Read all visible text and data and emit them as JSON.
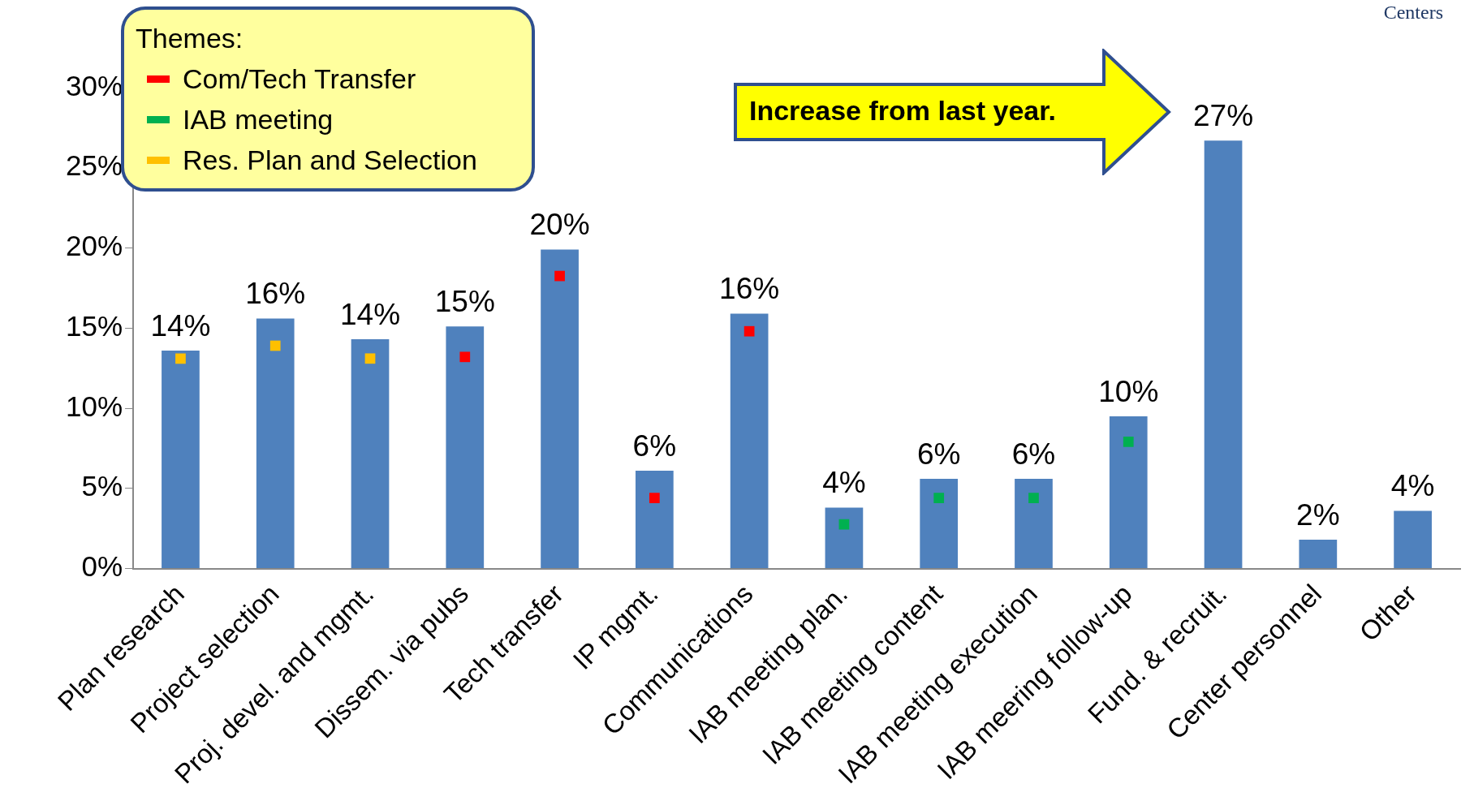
{
  "chart_data": {
    "type": "bar",
    "categories": [
      "Plan research",
      "Project selection",
      "Proj. devel. and mgmt.",
      "Dissem. via pubs",
      "Tech transfer",
      "IP mgmt.",
      "Communications",
      "IAB meeting plan.",
      "IAB meeting content",
      "IAB meeting execution",
      "IAB meering follow-up",
      "Fund. & recruit.",
      "Center personnel",
      "Other"
    ],
    "series": [
      {
        "color": "#4f81bd",
        "values": [
          13.6,
          15.6,
          14.3,
          15.1,
          19.9,
          6.1,
          15.9,
          3.8,
          5.6,
          5.6,
          9.5,
          26.7,
          1.8,
          3.6
        ],
        "value_labels": [
          "14%",
          "16%",
          "14%",
          "15%",
          "20%",
          "6%",
          "16%",
          "4%",
          "6%",
          "6%",
          "10%",
          "27%",
          "2%",
          "4%"
        ]
      },
      {
        "type": "scatter",
        "name": "Com/Tech Transfer",
        "color": "#ff0000",
        "x": [
          "Dissem. via pubs",
          "Tech transfer",
          "IP mgmt.",
          "Communications"
        ],
        "values": [
          13.2,
          18.25,
          4.4,
          14.8
        ]
      },
      {
        "type": "scatter",
        "name": "IAB meeting",
        "color": "#00b050",
        "x": [
          "IAB meeting plan.",
          "IAB meeting content",
          "IAB meeting execution",
          "IAB meering follow-up"
        ],
        "values": [
          2.75,
          4.4,
          4.4,
          7.9
        ]
      },
      {
        "type": "scatter",
        "name": "Res. Plan and Selection",
        "color": "#ffc000",
        "x": [
          "Plan research",
          "Project selection",
          "Proj. devel. and mgmt."
        ],
        "values": [
          13.1,
          13.9,
          13.1
        ]
      }
    ],
    "legend_title": "Themes:",
    "legend": "top left",
    "ylim": [
      0,
      30
    ],
    "yticks": [
      {
        "value": 0,
        "label": "0%"
      },
      {
        "value": 5,
        "label": "5%"
      },
      {
        "value": 10,
        "label": "10%"
      },
      {
        "value": 15,
        "label": "15%"
      },
      {
        "value": 20,
        "label": "20%"
      },
      {
        "value": 25,
        "label": "25%"
      },
      {
        "value": 30,
        "label": "30%"
      }
    ],
    "grid": false,
    "marker": "square",
    "annotations": [
      "Increase from last year.",
      "Centers"
    ]
  }
}
